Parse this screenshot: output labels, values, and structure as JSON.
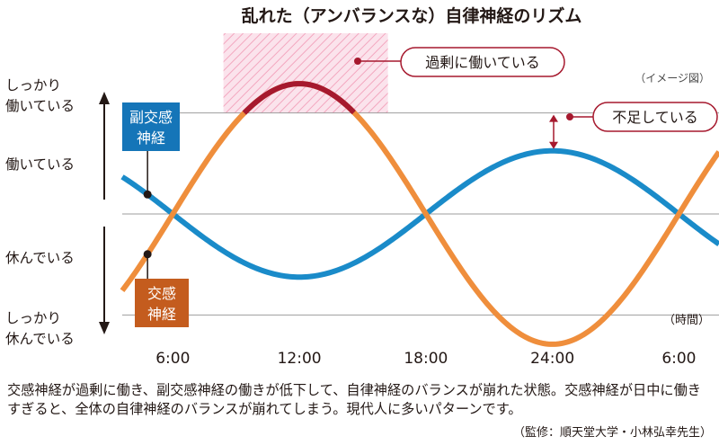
{
  "chart_data": {
    "type": "line",
    "title": "乱れた（アンバランスな）自律神経のリズム",
    "note": "（イメージ図）",
    "xlabel": "（時間）",
    "x_ticks": [
      "6:00",
      "12:00",
      "18:00",
      "24:00",
      "6:00"
    ],
    "x_tick_hours": [
      6,
      12,
      18,
      24,
      30
    ],
    "xlim": [
      3.6,
      31.9
    ],
    "y_levels": [
      "しっかり\n働いている",
      "働いている",
      "休んでいる",
      "しっかり\n休んでいる"
    ],
    "y_level_values": [
      2,
      1,
      -1,
      -2
    ],
    "ylim": [
      -2.4,
      2.4
    ],
    "series": [
      {
        "name": "副交感\n神経",
        "color": "#1a8bc9",
        "amplitude": 1.25,
        "peak_hour": 24,
        "period": 24,
        "marker_hour": 4.8
      },
      {
        "name": "交感\n神経",
        "color": "#ef8e3c",
        "over_color": "#a6192e",
        "amplitude": 2.58,
        "peak_hour": 12,
        "period": 24,
        "marker_hour": 4.8
      }
    ],
    "annotations": [
      {
        "text": "過剰に働いている",
        "color": "#a6192e"
      },
      {
        "text": "不足している",
        "color": "#a6192e"
      }
    ],
    "highlight_band": {
      "from_hour": 8.4,
      "to_hour": 16.2,
      "color": "#f3a7bf"
    },
    "caption": "交感神経が過剰に働き、副交感神経の働きが低下して、自律神経のバランスが崩れた状態。交感神経が日中に働きすぎると、全体の自律神経のバランスが崩れてしまう。現代人に多いパターンです。",
    "source": "（監修：順天堂大学・小林弘幸先生）"
  }
}
